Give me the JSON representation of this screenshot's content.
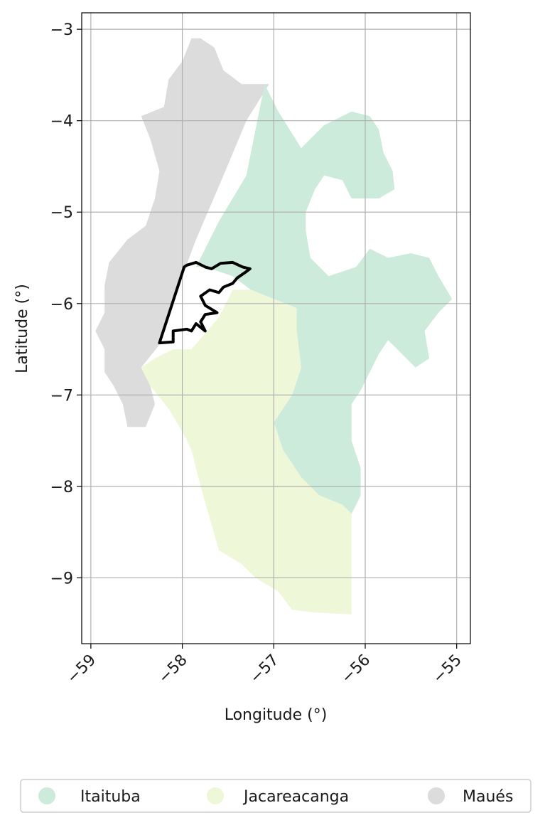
{
  "chart_data": {
    "type": "map",
    "xlabel": "Longitude (°)",
    "ylabel": "Latitude (°)",
    "xlim": [
      -59.1,
      -54.85
    ],
    "ylim": [
      -9.72,
      -2.82
    ],
    "xticks": [
      -59,
      -58,
      -57,
      -56,
      -55
    ],
    "xtick_labels": [
      "−59",
      "−58",
      "−57",
      "−56",
      "−55"
    ],
    "yticks": [
      -3,
      -4,
      -5,
      -6,
      -7,
      -8,
      -9
    ],
    "ytick_labels": [
      "−3",
      "−4",
      "−5",
      "−6",
      "−7",
      "−8",
      "−9"
    ],
    "grid": true,
    "legend_position": "bottom",
    "regions": [
      {
        "name": "Itaituba",
        "color": "#cdebdb",
        "coords": [
          [
            -57.1,
            -3.6
          ],
          [
            -56.95,
            -3.9
          ],
          [
            -56.7,
            -4.3
          ],
          [
            -56.45,
            -4.05
          ],
          [
            -56.15,
            -3.9
          ],
          [
            -55.95,
            -3.95
          ],
          [
            -55.85,
            -4.1
          ],
          [
            -55.8,
            -4.35
          ],
          [
            -55.7,
            -4.55
          ],
          [
            -55.68,
            -4.75
          ],
          [
            -55.85,
            -4.85
          ],
          [
            -56.15,
            -4.85
          ],
          [
            -56.25,
            -4.65
          ],
          [
            -56.45,
            -4.6
          ],
          [
            -56.55,
            -4.75
          ],
          [
            -56.65,
            -5.0
          ],
          [
            -56.65,
            -5.2
          ],
          [
            -56.6,
            -5.5
          ],
          [
            -56.4,
            -5.7
          ],
          [
            -56.1,
            -5.6
          ],
          [
            -55.95,
            -5.4
          ],
          [
            -55.75,
            -5.5
          ],
          [
            -55.5,
            -5.45
          ],
          [
            -55.3,
            -5.5
          ],
          [
            -55.2,
            -5.7
          ],
          [
            -55.05,
            -5.95
          ],
          [
            -55.2,
            -6.1
          ],
          [
            -55.35,
            -6.3
          ],
          [
            -55.3,
            -6.6
          ],
          [
            -55.45,
            -6.7
          ],
          [
            -55.6,
            -6.55
          ],
          [
            -55.75,
            -6.4
          ],
          [
            -55.85,
            -6.55
          ],
          [
            -55.95,
            -6.75
          ],
          [
            -56.05,
            -6.95
          ],
          [
            -56.15,
            -7.1
          ],
          [
            -56.15,
            -7.5
          ],
          [
            -56.05,
            -7.8
          ],
          [
            -56.05,
            -8.1
          ],
          [
            -56.15,
            -8.3
          ],
          [
            -56.25,
            -8.2
          ],
          [
            -56.5,
            -8.1
          ],
          [
            -56.7,
            -7.9
          ],
          [
            -56.9,
            -7.6
          ],
          [
            -57.0,
            -7.3
          ],
          [
            -56.8,
            -7.0
          ],
          [
            -56.7,
            -6.7
          ],
          [
            -56.75,
            -6.3
          ],
          [
            -56.75,
            -6.05
          ],
          [
            -57.0,
            -5.95
          ],
          [
            -57.25,
            -5.85
          ],
          [
            -57.45,
            -5.7
          ],
          [
            -57.75,
            -5.6
          ],
          [
            -57.85,
            -5.6
          ],
          [
            -57.6,
            -5.1
          ],
          [
            -57.3,
            -4.6
          ]
        ]
      },
      {
        "name": "Jacareacanga",
        "color": "#eef8d9",
        "coords": [
          [
            -57.9,
            -6.5
          ],
          [
            -57.6,
            -6.15
          ],
          [
            -57.45,
            -5.85
          ],
          [
            -57.25,
            -5.85
          ],
          [
            -57.0,
            -5.95
          ],
          [
            -56.75,
            -6.05
          ],
          [
            -56.75,
            -6.3
          ],
          [
            -56.7,
            -6.7
          ],
          [
            -56.8,
            -7.0
          ],
          [
            -57.0,
            -7.3
          ],
          [
            -56.9,
            -7.6
          ],
          [
            -56.7,
            -7.9
          ],
          [
            -56.5,
            -8.1
          ],
          [
            -56.25,
            -8.2
          ],
          [
            -56.15,
            -8.3
          ],
          [
            -56.15,
            -9.4
          ],
          [
            -56.55,
            -9.38
          ],
          [
            -56.8,
            -9.35
          ],
          [
            -56.95,
            -9.15
          ],
          [
            -57.2,
            -9.0
          ],
          [
            -57.35,
            -8.85
          ],
          [
            -57.6,
            -8.7
          ],
          [
            -57.7,
            -8.35
          ],
          [
            -57.8,
            -8.0
          ],
          [
            -57.9,
            -7.6
          ],
          [
            -58.0,
            -7.4
          ],
          [
            -58.15,
            -7.15
          ],
          [
            -58.35,
            -6.9
          ],
          [
            -58.45,
            -6.7
          ],
          [
            -58.3,
            -6.6
          ],
          [
            -58.1,
            -6.5
          ]
        ]
      },
      {
        "name": "Maués",
        "color": "#dcdcdc",
        "coords": [
          [
            -57.8,
            -3.1
          ],
          [
            -57.65,
            -3.2
          ],
          [
            -57.55,
            -3.45
          ],
          [
            -57.35,
            -3.6
          ],
          [
            -57.15,
            -3.6
          ],
          [
            -57.05,
            -3.6
          ],
          [
            -57.3,
            -4.0
          ],
          [
            -57.55,
            -4.6
          ],
          [
            -57.85,
            -5.3
          ],
          [
            -58.0,
            -5.7
          ],
          [
            -58.25,
            -6.45
          ],
          [
            -58.45,
            -6.7
          ],
          [
            -58.35,
            -6.9
          ],
          [
            -58.3,
            -7.1
          ],
          [
            -58.4,
            -7.35
          ],
          [
            -58.6,
            -7.35
          ],
          [
            -58.65,
            -7.1
          ],
          [
            -58.75,
            -6.9
          ],
          [
            -58.85,
            -6.75
          ],
          [
            -58.85,
            -6.5
          ],
          [
            -58.95,
            -6.3
          ],
          [
            -58.85,
            -6.1
          ],
          [
            -58.85,
            -5.8
          ],
          [
            -58.8,
            -5.55
          ],
          [
            -58.6,
            -5.3
          ],
          [
            -58.4,
            -5.15
          ],
          [
            -58.3,
            -4.85
          ],
          [
            -58.25,
            -4.55
          ],
          [
            -58.35,
            -4.2
          ],
          [
            -58.45,
            -3.95
          ],
          [
            -58.2,
            -3.85
          ],
          [
            -58.15,
            -3.55
          ],
          [
            -58.0,
            -3.35
          ],
          [
            -57.9,
            -3.1
          ]
        ]
      }
    ],
    "highlight_outline": {
      "color": "#000000",
      "coords": [
        [
          -58.25,
          -6.43
        ],
        [
          -58.1,
          -6.42
        ],
        [
          -58.1,
          -6.3
        ],
        [
          -57.95,
          -6.28
        ],
        [
          -57.9,
          -6.3
        ],
        [
          -57.85,
          -6.22
        ],
        [
          -57.75,
          -6.3
        ],
        [
          -57.8,
          -6.2
        ],
        [
          -57.75,
          -6.12
        ],
        [
          -57.62,
          -6.1
        ],
        [
          -57.75,
          -6.02
        ],
        [
          -57.8,
          -5.92
        ],
        [
          -57.7,
          -5.85
        ],
        [
          -57.6,
          -5.88
        ],
        [
          -57.55,
          -5.82
        ],
        [
          -57.45,
          -5.78
        ],
        [
          -57.4,
          -5.72
        ],
        [
          -57.3,
          -5.65
        ],
        [
          -57.26,
          -5.62
        ],
        [
          -57.34,
          -5.6
        ],
        [
          -57.45,
          -5.55
        ],
        [
          -57.58,
          -5.56
        ],
        [
          -57.68,
          -5.62
        ],
        [
          -57.75,
          -5.6
        ],
        [
          -57.85,
          -5.55
        ],
        [
          -57.95,
          -5.58
        ],
        [
          -57.98,
          -5.6
        ]
      ]
    },
    "legend": [
      {
        "label": "Itaituba",
        "color": "#cdebdb"
      },
      {
        "label": "Jacareacanga",
        "color": "#eef8d9"
      },
      {
        "label": "Maués",
        "color": "#dcdcdc"
      }
    ]
  }
}
